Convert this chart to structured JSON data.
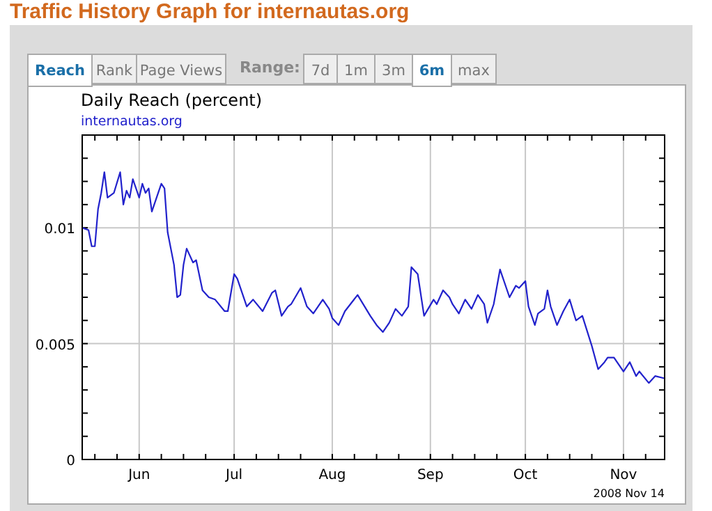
{
  "chart_data": {
    "type": "line",
    "title": "Traffic History Graph for internautas.org",
    "subtitle": "Daily Reach (percent)",
    "annotations": [
      "Reach",
      "Rank",
      "Page Views",
      "Range:",
      "7d",
      "1m",
      "3m",
      "6m",
      "max",
      "2008 Nov 14"
    ],
    "legend": "top left",
    "grid": true,
    "line_style": "solid",
    "marker": "none",
    "xlim": [
      "2008-05-14",
      "2008-11-14"
    ],
    "xticks": [
      {
        "value": "2008-05-18",
        "label": null
      },
      {
        "value": "2008-05-25",
        "label": null
      },
      {
        "value": "2008-06-01",
        "label": "Jun"
      },
      {
        "value": "2008-06-08",
        "label": null
      },
      {
        "value": "2008-06-15",
        "label": null
      },
      {
        "value": "2008-06-22",
        "label": null
      },
      {
        "value": "2008-07-01",
        "label": "Jul"
      },
      {
        "value": "2008-07-08",
        "label": null
      },
      {
        "value": "2008-07-15",
        "label": null
      },
      {
        "value": "2008-07-22",
        "label": null
      },
      {
        "value": "2008-08-01",
        "label": "Aug"
      },
      {
        "value": "2008-08-08",
        "label": null
      },
      {
        "value": "2008-08-15",
        "label": null
      },
      {
        "value": "2008-08-22",
        "label": null
      },
      {
        "value": "2008-09-01",
        "label": "Sep"
      },
      {
        "value": "2008-09-08",
        "label": null
      },
      {
        "value": "2008-09-15",
        "label": null
      },
      {
        "value": "2008-09-22",
        "label": null
      },
      {
        "value": "2008-10-01",
        "label": "Oct"
      },
      {
        "value": "2008-10-08",
        "label": null
      },
      {
        "value": "2008-10-15",
        "label": null
      },
      {
        "value": "2008-10-22",
        "label": null
      },
      {
        "value": "2008-11-01",
        "label": "Nov"
      },
      {
        "value": "2008-11-08",
        "label": null
      }
    ],
    "ylim": [
      0,
      0.014
    ],
    "yticks": [
      0,
      {
        "value": 0.001,
        "label": null
      },
      {
        "value": 0.002,
        "label": null
      },
      {
        "value": 0.003,
        "label": null
      },
      {
        "value": 0.004,
        "label": null
      },
      0.005,
      {
        "value": 0.006,
        "label": null
      },
      {
        "value": 0.007,
        "label": null
      },
      {
        "value": 0.008,
        "label": null
      },
      {
        "value": 0.009,
        "label": null
      },
      0.01,
      {
        "value": 0.011,
        "label": null
      },
      {
        "value": 0.012,
        "label": null
      },
      {
        "value": 0.013,
        "label": null
      }
    ],
    "x": [
      "2008-05-14",
      "2008-05-16",
      "2008-05-17",
      "2008-05-18",
      "2008-05-19",
      "2008-05-20",
      "2008-05-21",
      "2008-05-22",
      "2008-05-24",
      "2008-05-26",
      "2008-05-27",
      "2008-05-28",
      "2008-05-29",
      "2008-05-30",
      "2008-06-01",
      "2008-06-02",
      "2008-06-03",
      "2008-06-04",
      "2008-06-05",
      "2008-06-07",
      "2008-06-08",
      "2008-06-09",
      "2008-06-10",
      "2008-06-12",
      "2008-06-13",
      "2008-06-14",
      "2008-06-15",
      "2008-06-16",
      "2008-06-18",
      "2008-06-19",
      "2008-06-21",
      "2008-06-23",
      "2008-06-25",
      "2008-06-28",
      "2008-06-29",
      "2008-07-01",
      "2008-07-02",
      "2008-07-05",
      "2008-07-07",
      "2008-07-10",
      "2008-07-13",
      "2008-07-14",
      "2008-07-16",
      "2008-07-18",
      "2008-07-19",
      "2008-07-22",
      "2008-07-24",
      "2008-07-26",
      "2008-07-29",
      "2008-07-31",
      "2008-08-01",
      "2008-08-03",
      "2008-08-05",
      "2008-08-09",
      "2008-08-13",
      "2008-08-15",
      "2008-08-17",
      "2008-08-19",
      "2008-08-21",
      "2008-08-23",
      "2008-08-25",
      "2008-08-26",
      "2008-08-28",
      "2008-08-30",
      "2008-09-02",
      "2008-09-03",
      "2008-09-05",
      "2008-09-07",
      "2008-09-08",
      "2008-09-10",
      "2008-09-12",
      "2008-09-14",
      "2008-09-16",
      "2008-09-18",
      "2008-09-19",
      "2008-09-21",
      "2008-09-23",
      "2008-09-26",
      "2008-09-28",
      "2008-09-29",
      "2008-10-01",
      "2008-10-02",
      "2008-10-04",
      "2008-10-05",
      "2008-10-07",
      "2008-10-08",
      "2008-10-09",
      "2008-10-11",
      "2008-10-13",
      "2008-10-15",
      "2008-10-17",
      "2008-10-19",
      "2008-10-22",
      "2008-10-24",
      "2008-10-26",
      "2008-10-27",
      "2008-10-29",
      "2008-11-01",
      "2008-11-03",
      "2008-11-05",
      "2008-11-06",
      "2008-11-09",
      "2008-11-11",
      "2008-11-14"
    ],
    "series": [
      {
        "name": "internautas.org",
        "color": "#2222cc",
        "values": [
          0.01,
          0.0099,
          0.0092,
          0.0092,
          0.0108,
          0.0115,
          0.0124,
          0.0113,
          0.0115,
          0.0124,
          0.011,
          0.0116,
          0.0113,
          0.0121,
          0.0113,
          0.0119,
          0.0115,
          0.0117,
          0.0107,
          0.0115,
          0.0119,
          0.0117,
          0.0098,
          0.0084,
          0.007,
          0.0071,
          0.0084,
          0.0091,
          0.0085,
          0.0086,
          0.0073,
          0.007,
          0.0069,
          0.0064,
          0.0064,
          0.008,
          0.0078,
          0.0066,
          0.0069,
          0.0064,
          0.0072,
          0.0073,
          0.0062,
          0.0066,
          0.0067,
          0.0074,
          0.0066,
          0.0063,
          0.0069,
          0.0065,
          0.0061,
          0.0058,
          0.0064,
          0.0071,
          0.0062,
          0.0058,
          0.0055,
          0.0059,
          0.0065,
          0.0062,
          0.0066,
          0.0083,
          0.008,
          0.0062,
          0.0069,
          0.0067,
          0.0073,
          0.007,
          0.0067,
          0.0063,
          0.0069,
          0.0065,
          0.0071,
          0.0067,
          0.0059,
          0.0067,
          0.0082,
          0.007,
          0.0075,
          0.0074,
          0.0077,
          0.0066,
          0.0058,
          0.0063,
          0.0065,
          0.0073,
          0.0066,
          0.0058,
          0.0064,
          0.0069,
          0.006,
          0.0062,
          0.0049,
          0.0039,
          0.0042,
          0.0044,
          0.0044,
          0.0038,
          0.0042,
          0.0036,
          0.0038,
          0.0033,
          0.0036,
          0.0035
        ]
      }
    ]
  }
}
